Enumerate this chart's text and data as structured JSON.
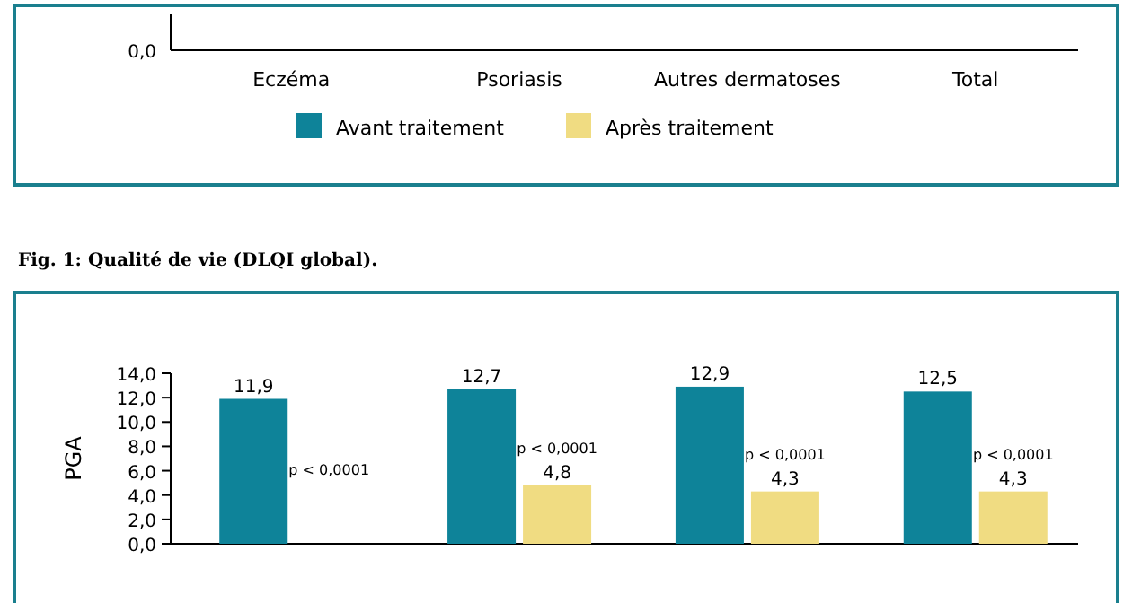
{
  "chart_data": [
    {
      "type": "other",
      "categories": [
        "Eczéma",
        "Psoriasis",
        "Autres dermatoses",
        "Total"
      ],
      "annotations": [
        "Fig. 1: Qualité de vie (DLQI global).",
        "0,0",
        "Avant traitement",
        "Après traitement"
      ]
    },
    {
      "type": "bar",
      "categories": [
        null,
        null,
        null,
        null
      ],
      "ylabel": "PGA",
      "series": [
        {
          "color": "#0e8399",
          "values": [
            11.9,
            12.7,
            12.9,
            12.5
          ],
          "value_labels": [
            "11,9",
            "12,7",
            "12,9",
            "12,5"
          ]
        },
        {
          "color": "#f0dc82",
          "values": [
            null,
            4.8,
            4.3,
            4.3
          ],
          "value_labels": [
            null,
            "4,8",
            "4,3",
            "4,3"
          ]
        }
      ],
      "ylim": [
        0,
        14
      ],
      "yticks": [
        {
          "value": 0,
          "label": "0,0"
        },
        {
          "value": 2,
          "label": "2,0"
        },
        {
          "value": 4,
          "label": "4,0"
        },
        {
          "value": 6,
          "label": "6,0"
        },
        {
          "value": 8,
          "label": "8,0"
        },
        {
          "value": 10,
          "label": "10,0"
        },
        {
          "value": 12,
          "label": "12,0"
        },
        {
          "value": 14,
          "label": "14,0"
        }
      ],
      "annotations": [
        "p < 0,0001",
        "p < 0,0001",
        "p < 0,0001",
        "p < 0,0001"
      ]
    }
  ]
}
